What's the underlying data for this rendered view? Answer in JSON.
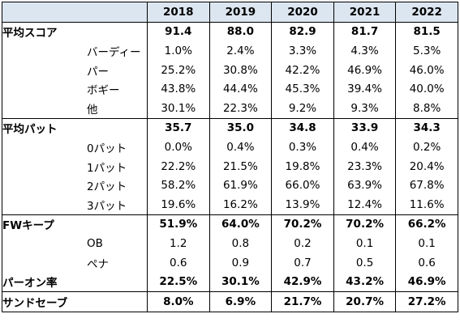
{
  "table": {
    "years": [
      "2018",
      "2019",
      "2020",
      "2021",
      "2022"
    ],
    "rows": [
      {
        "label": "平均スコア",
        "values": [
          "91.4",
          "88.0",
          "82.9",
          "81.7",
          "81.5"
        ]
      },
      {
        "label": "バーディー",
        "values": [
          "1.0%",
          "2.4%",
          "3.3%",
          "4.3%",
          "5.3%"
        ]
      },
      {
        "label": "パー",
        "values": [
          "25.2%",
          "30.8%",
          "42.2%",
          "46.9%",
          "46.0%"
        ]
      },
      {
        "label": "ボギー",
        "values": [
          "43.8%",
          "44.4%",
          "45.3%",
          "39.4%",
          "40.0%"
        ]
      },
      {
        "label": "他",
        "values": [
          "30.1%",
          "22.3%",
          "9.2%",
          "9.3%",
          "8.8%"
        ]
      },
      {
        "label": "平均パット",
        "values": [
          "35.7",
          "35.0",
          "34.8",
          "33.9",
          "34.3"
        ]
      },
      {
        "label": "0パット",
        "values": [
          "0.0%",
          "0.4%",
          "0.3%",
          "0.4%",
          "0.2%"
        ]
      },
      {
        "label": "1パット",
        "values": [
          "22.2%",
          "21.5%",
          "19.8%",
          "23.3%",
          "20.4%"
        ]
      },
      {
        "label": "2パット",
        "values": [
          "58.2%",
          "61.9%",
          "66.0%",
          "63.9%",
          "67.8%"
        ]
      },
      {
        "label": "3パット",
        "values": [
          "19.6%",
          "16.2%",
          "13.9%",
          "12.4%",
          "11.6%"
        ]
      },
      {
        "label": "FWキープ",
        "values": [
          "51.9%",
          "64.0%",
          "70.2%",
          "70.2%",
          "66.2%"
        ]
      },
      {
        "label": "OB",
        "values": [
          "1.2",
          "0.8",
          "0.2",
          "0.1",
          "0.1"
        ]
      },
      {
        "label": "ペナ",
        "values": [
          "0.6",
          "0.9",
          "0.7",
          "0.5",
          "0.6"
        ]
      },
      {
        "label": "パーオン率",
        "values": [
          "22.5%",
          "30.1%",
          "42.9%",
          "43.2%",
          "46.9%"
        ]
      },
      {
        "label": "サンドセーブ",
        "values": [
          "8.0%",
          "6.9%",
          "21.7%",
          "20.7%",
          "27.2%"
        ]
      }
    ]
  }
}
